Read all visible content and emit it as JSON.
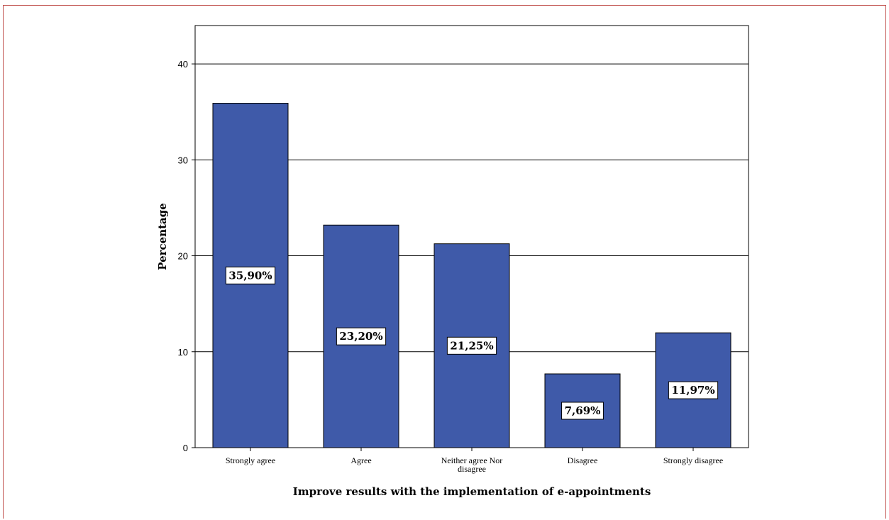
{
  "chart_data": {
    "type": "bar",
    "categories": [
      [
        "Strongly agree"
      ],
      [
        "Agree"
      ],
      [
        "Neither agree Nor",
        "disagree"
      ],
      [
        "Disagree"
      ],
      [
        "Strongly disagree"
      ]
    ],
    "values": [
      35.9,
      23.2,
      21.25,
      7.69,
      11.97
    ],
    "data_labels": [
      "35,90%",
      "23,20%",
      "21,25%",
      "7,69%",
      "11,97%"
    ],
    "title": "",
    "xlabel": "Improve results with the implementation of e-appointments",
    "ylabel": "Percentage",
    "ylim": [
      0,
      44
    ],
    "yticks": [
      0,
      10,
      20,
      30,
      40
    ],
    "grid": true,
    "bar_color": "#3f5aa9",
    "bar_edge_color": "#000000"
  }
}
